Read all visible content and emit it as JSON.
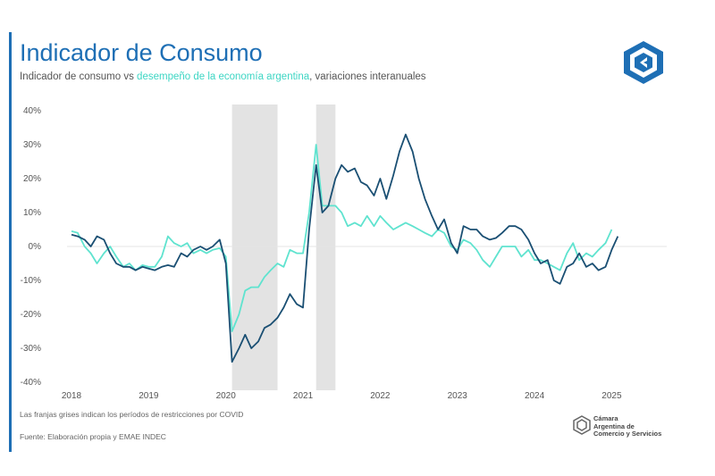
{
  "header": {
    "title": "Indicador de Consumo",
    "subtitle_a": "Indicador de consumo vs ",
    "subtitle_b": "desempeño de la economía argentina",
    "subtitle_c": ", variaciones interanuales"
  },
  "footer": {
    "note": "Las franjas grises indican los períodos de restricciones por COVID",
    "source": "Fuente: Elaboración propia y EMAE INDEC",
    "org_lines": [
      "Cámara",
      "Argentina de",
      "Comercio y Servicios"
    ]
  },
  "colors": {
    "accent": "#1e6fb5",
    "series_consumo": "#1a4f73",
    "series_economia": "#5fe3cf",
    "covid_band": "#e3e3e3"
  },
  "icons": [
    "cac-logo-icon",
    "cac-small-logo-icon"
  ],
  "chart_data": {
    "type": "line",
    "ylim": [
      -40,
      40
    ],
    "xlim": [
      2018,
      2025.25
    ],
    "y_ticks": [
      40,
      30,
      20,
      10,
      0,
      -10,
      -20,
      -30,
      -40
    ],
    "y_tick_labels": [
      "40%",
      "30%",
      "20%",
      "10%",
      "0%",
      "-10%",
      "-20%",
      "-30%",
      "-40%"
    ],
    "x_ticks": [
      2018,
      2019,
      2020,
      2021,
      2022,
      2023,
      2024,
      2025
    ],
    "x_tick_labels": [
      "2018",
      "2019",
      "2020",
      "2021",
      "2022",
      "2023",
      "2024",
      "2025"
    ],
    "covid_bands": [
      [
        2020.08,
        2020.67
      ],
      [
        2021.17,
        2021.42
      ]
    ],
    "series": [
      {
        "key": "consumo",
        "x": [
          2018.0,
          2018.08,
          2018.17,
          2018.25,
          2018.33,
          2018.42,
          2018.5,
          2018.58,
          2018.67,
          2018.75,
          2018.83,
          2018.92,
          2019.0,
          2019.08,
          2019.17,
          2019.25,
          2019.33,
          2019.42,
          2019.5,
          2019.58,
          2019.67,
          2019.75,
          2019.83,
          2019.92,
          2020.0,
          2020.08,
          2020.17,
          2020.25,
          2020.33,
          2020.42,
          2020.5,
          2020.58,
          2020.67,
          2020.75,
          2020.83,
          2020.92,
          2021.0,
          2021.08,
          2021.17,
          2021.25,
          2021.33,
          2021.42,
          2021.5,
          2021.58,
          2021.67,
          2021.75,
          2021.83,
          2021.92,
          2022.0,
          2022.08,
          2022.17,
          2022.25,
          2022.33,
          2022.42,
          2022.5,
          2022.58,
          2022.67,
          2022.75,
          2022.83,
          2022.92,
          2023.0,
          2023.08,
          2023.17,
          2023.25,
          2023.33,
          2023.42,
          2023.5,
          2023.58,
          2023.67,
          2023.75,
          2023.83,
          2023.92,
          2024.0,
          2024.08,
          2024.17,
          2024.25,
          2024.33,
          2024.42,
          2024.5,
          2024.58,
          2024.67,
          2024.75,
          2024.83,
          2024.92,
          2025.0,
          2025.08
        ],
        "values": [
          3.5,
          3,
          2,
          0,
          3,
          2,
          -2,
          -5,
          -6,
          -6,
          -7,
          -6,
          -6.5,
          -7,
          -6,
          -5.5,
          -6,
          -2,
          -3,
          -1,
          0,
          -1,
          0,
          2,
          -5,
          -34,
          -30,
          -26,
          -30,
          -28,
          -24,
          -23,
          -21,
          -18,
          -14,
          -17,
          -18,
          5,
          24,
          10,
          12,
          20,
          24,
          22,
          23,
          19,
          18,
          15,
          20,
          14,
          21,
          28,
          33,
          28,
          20,
          14,
          9,
          5,
          8,
          1,
          -2,
          6,
          5,
          5,
          3,
          2,
          2.5,
          4,
          6,
          6,
          5,
          2,
          -2,
          -5,
          -4,
          -10,
          -11,
          -6,
          -5,
          -2,
          -6,
          -5,
          -7,
          -6,
          -1,
          3
        ]
      },
      {
        "key": "economia",
        "x": [
          2018.0,
          2018.08,
          2018.17,
          2018.25,
          2018.33,
          2018.42,
          2018.5,
          2018.58,
          2018.67,
          2018.75,
          2018.83,
          2018.92,
          2019.0,
          2019.08,
          2019.17,
          2019.25,
          2019.33,
          2019.42,
          2019.5,
          2019.58,
          2019.67,
          2019.75,
          2019.83,
          2019.92,
          2020.0,
          2020.08,
          2020.17,
          2020.25,
          2020.33,
          2020.42,
          2020.5,
          2020.58,
          2020.67,
          2020.75,
          2020.83,
          2020.92,
          2021.0,
          2021.08,
          2021.17,
          2021.25,
          2021.33,
          2021.42,
          2021.5,
          2021.58,
          2021.67,
          2021.75,
          2021.83,
          2021.92,
          2022.0,
          2022.08,
          2022.17,
          2022.25,
          2022.33,
          2022.42,
          2022.5,
          2022.58,
          2022.67,
          2022.75,
          2022.83,
          2022.92,
          2023.0,
          2023.08,
          2023.17,
          2023.25,
          2023.33,
          2023.42,
          2023.5,
          2023.58,
          2023.67,
          2023.75,
          2023.83,
          2023.92,
          2024.0,
          2024.08,
          2024.17,
          2024.25,
          2024.33,
          2024.42,
          2024.5,
          2024.58,
          2024.67,
          2024.75,
          2024.83,
          2024.92,
          2025.0
        ],
        "values": [
          4.5,
          4,
          0,
          -2,
          -5,
          -2,
          0,
          -3,
          -6,
          -5,
          -7,
          -5.5,
          -6,
          -6,
          -3,
          3,
          1,
          0,
          1,
          -2,
          -1,
          -2,
          -1,
          -0.5,
          -3,
          -25,
          -20,
          -13,
          -12,
          -12,
          -9,
          -7,
          -5,
          -6,
          -1,
          -2,
          -2,
          10,
          30,
          12,
          12,
          12,
          10,
          6,
          7,
          6,
          9,
          6,
          9,
          7,
          5,
          6,
          7,
          6,
          5,
          4,
          3,
          5,
          4,
          0,
          -1,
          2,
          1,
          -1,
          -4,
          -6,
          -3,
          0,
          0,
          0,
          -3,
          -1,
          -4,
          -4,
          -5,
          -6,
          -7,
          -2,
          1,
          -4,
          -2,
          -3,
          -1,
          1,
          5
        ]
      }
    ]
  }
}
